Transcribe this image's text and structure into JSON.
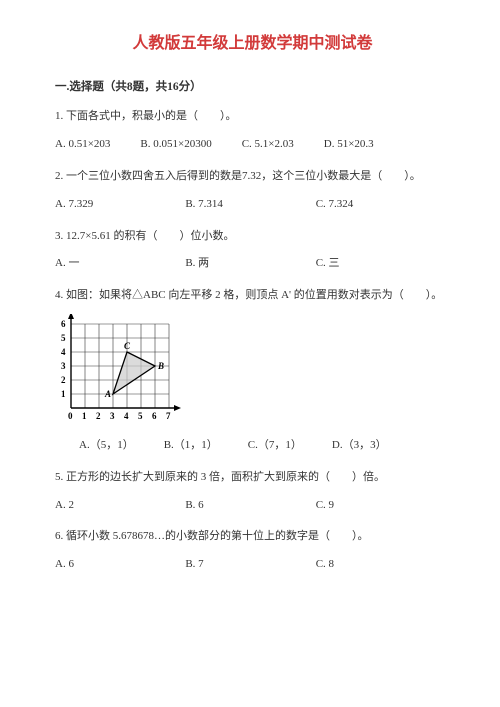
{
  "title": "人教版五年级上册数学期中测试卷",
  "section1": {
    "header": "一.选择题（共8题，共16分）",
    "q1": {
      "text": "1. 下面各式中，积最小的是（　　）。",
      "a": "A. 0.51×203",
      "b": "B. 0.051×20300",
      "c": "C. 5.1×2.03",
      "d": "D. 51×20.3"
    },
    "q2": {
      "text": "2. 一个三位小数四舍五入后得到的数是7.32，这个三位小数最大是（　　）。",
      "a": "A. 7.329",
      "b": "B. 7.314",
      "c": "C. 7.324"
    },
    "q3": {
      "text": "3. 12.7×5.61 的积有（　　）位小数。",
      "a": "A. 一",
      "b": "B. 两",
      "c": "C. 三"
    },
    "q4": {
      "text": "4. 如图：如果将△ABC 向左平移 2 格，则顶点 A' 的位置用数对表示为（　　）。",
      "a": "A.（5，1）",
      "b": "B.（1，1）",
      "c": "C.（7，1）",
      "d": "D.（3，3）"
    },
    "q5": {
      "text": "5. 正方形的边长扩大到原来的 3 倍，面积扩大到原来的（　　）倍。",
      "a": "A. 2",
      "b": "B. 6",
      "c": "C. 9"
    },
    "q6": {
      "text": "6. 循环小数 5.678678…的小数部分的第十位上的数字是（　　）。",
      "a": "A. 6",
      "b": "B. 7",
      "c": "C. 8"
    }
  },
  "chart": {
    "grid_color": "#333333",
    "bg": "#ffffff",
    "axis_color": "#000000",
    "rows": 6,
    "cols": 7,
    "cell": 14,
    "x_labels": [
      "0",
      "1",
      "2",
      "3",
      "4",
      "5",
      "6",
      "7"
    ],
    "y_labels": [
      "1",
      "2",
      "3",
      "4",
      "5",
      "6"
    ],
    "points": {
      "A": {
        "x": 3,
        "y": 1,
        "label": "A"
      },
      "B": {
        "x": 6,
        "y": 3,
        "label": "B"
      },
      "C": {
        "x": 4,
        "y": 4,
        "label": "C"
      }
    },
    "fill_color": "#cccccc",
    "stroke_color": "#000000",
    "label_fontsize": 9
  }
}
